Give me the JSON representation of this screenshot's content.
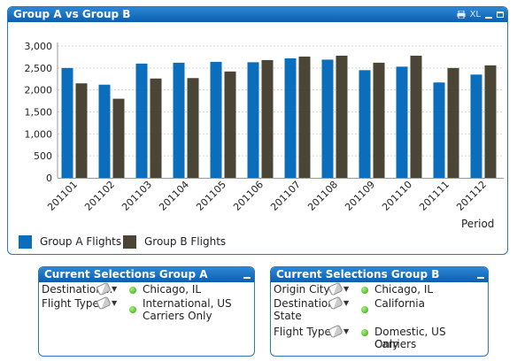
{
  "chart_panel": {
    "title": "Group A vs Group B",
    "print_icon": "printer-icon",
    "xl_label": "XL"
  },
  "chart_data": {
    "type": "bar",
    "categories": [
      "201101",
      "201102",
      "201103",
      "201104",
      "201105",
      "201106",
      "201107",
      "201108",
      "201109",
      "201110",
      "201111",
      "201112"
    ],
    "series": [
      {
        "name": "Group A Flights",
        "color": "#0a6ebd",
        "values": [
          2500,
          2120,
          2600,
          2620,
          2640,
          2630,
          2720,
          2690,
          2450,
          2530,
          2170,
          2350
        ]
      },
      {
        "name": "Group B Flights",
        "color": "#4b4535",
        "values": [
          2150,
          1800,
          2260,
          2270,
          2420,
          2680,
          2760,
          2780,
          2620,
          2780,
          2500,
          2560
        ]
      }
    ],
    "y_ticks": [
      "0",
      "500",
      "1,000",
      "1,500",
      "2,000",
      "2,500",
      "3,000"
    ],
    "ylim": [
      0,
      3000
    ],
    "xlabel": "Period",
    "legend_position": "bottom-left",
    "grid": true
  },
  "selections_a": {
    "title": "Current Selections Group A",
    "rows": [
      {
        "field": "Destination...",
        "values": [
          "Chicago, IL"
        ]
      },
      {
        "field": "Flight Type",
        "values": [
          "International, US",
          "Carriers Only"
        ]
      }
    ]
  },
  "selections_b": {
    "title": "Current Selections Group B",
    "rows": [
      {
        "field": "Origin City",
        "values": [
          "Chicago, IL"
        ]
      },
      {
        "field_lines": [
          "Destination",
          "State"
        ],
        "values": [
          "California"
        ]
      },
      {
        "field": "Flight Type",
        "values": [
          "Domestic, US Carriers",
          "Only"
        ]
      }
    ]
  }
}
